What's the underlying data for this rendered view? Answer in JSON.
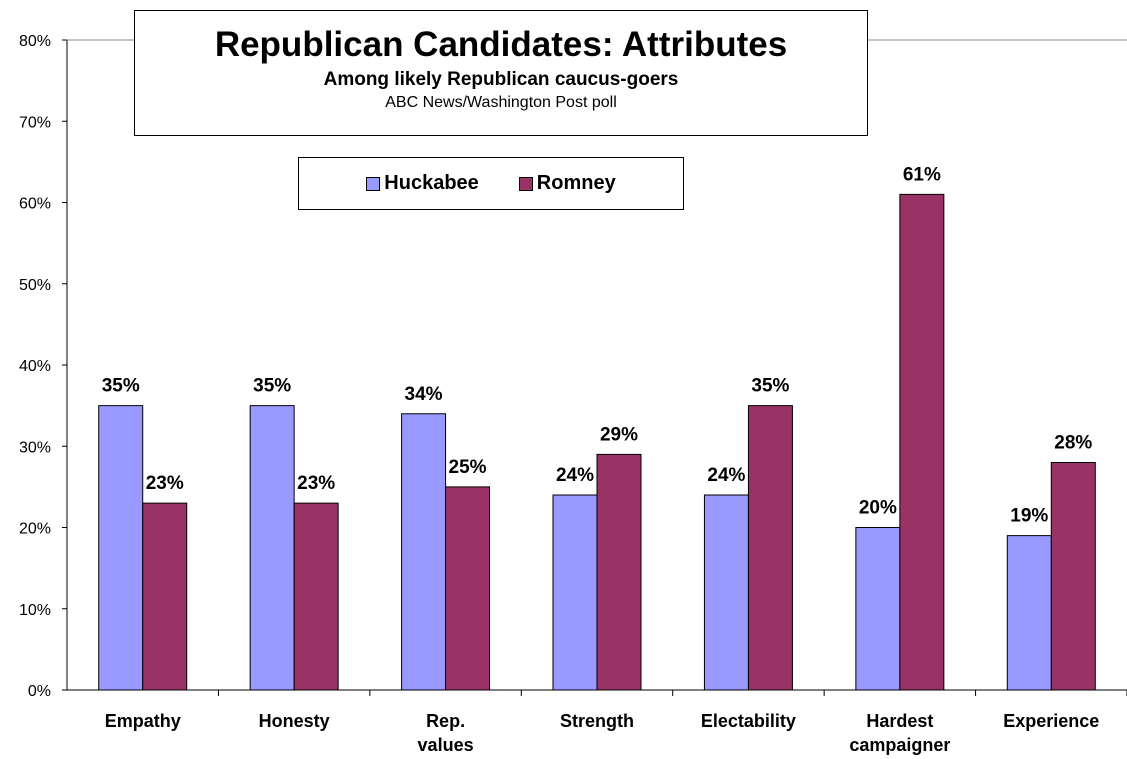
{
  "chart_data": {
    "type": "bar",
    "title": "Republican Candidates: Attributes",
    "subtitle": "Among likely Republican caucus-goers",
    "source": "ABC News/Washington Post poll",
    "categories": [
      [
        "Empathy"
      ],
      [
        "Honesty"
      ],
      [
        "Rep.",
        "values"
      ],
      [
        "Strength"
      ],
      [
        "Electability"
      ],
      [
        "Hardest",
        "campaigner"
      ],
      [
        "Experience"
      ]
    ],
    "series": [
      {
        "name": "Huckabee",
        "color": "#9999ff",
        "values": [
          35,
          35,
          34,
          24,
          24,
          20,
          19
        ]
      },
      {
        "name": "Romney",
        "color": "#993366",
        "values": [
          23,
          23,
          25,
          29,
          35,
          61,
          28
        ]
      }
    ],
    "yticks": [
      "0%",
      "10%",
      "20%",
      "30%",
      "40%",
      "50%",
      "60%",
      "70%",
      "80%"
    ],
    "ylim": [
      0,
      80
    ],
    "value_suffix": "%",
    "legend_position": "top-center",
    "grid": false
  }
}
